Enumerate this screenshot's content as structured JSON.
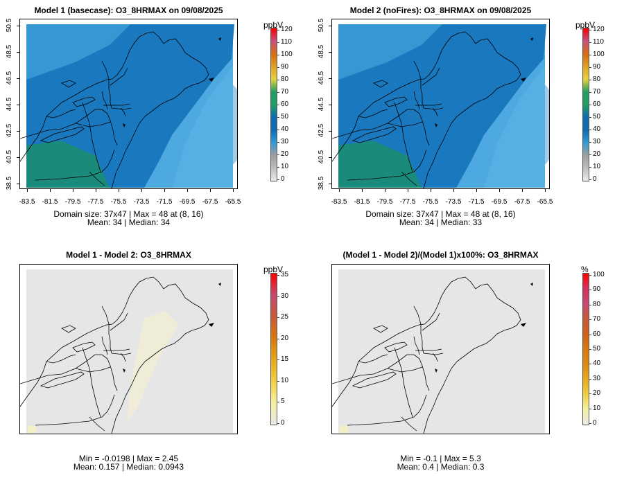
{
  "panels": [
    {
      "title": "Model 1 (basecase): O3_8HRMAX on 09/08/2025",
      "unit": "ppbV",
      "cbar_ticks": [
        "120",
        "110",
        "100",
        "90",
        "80",
        "70",
        "60",
        "50",
        "40",
        "30",
        "20",
        "10",
        "0"
      ],
      "cbar_colors": [
        "#e9e9e9",
        "#bdbdbd",
        "#9e9e9e",
        "#2f9bd6",
        "#0f6cb3",
        "#0f6cb3",
        "#1e9e60",
        "#1e9e60",
        "#e6d23a",
        "#e0a020",
        "#d86b10",
        "#c75080",
        "#ff0000"
      ],
      "stats_line1": "Domain size: 37x47 | Max = 48 at (8, 16)",
      "stats_line2": "Mean: 34 |  Median: 34",
      "y_ticks": [
        "50.5",
        "48.5",
        "46.5",
        "44.5",
        "42.5",
        "40.5",
        "38.5"
      ],
      "x_ticks": [
        "-83.5",
        "-81.5",
        "-79.5",
        "-77.5",
        "-75.5",
        "-73.5",
        "-71.5",
        "-69.5",
        "-67.5",
        "-65.5"
      ],
      "kind": "ozone"
    },
    {
      "title": "Model 2 (noFires): O3_8HRMAX on 09/08/2025",
      "unit": "ppbV",
      "cbar_ticks": [
        "120",
        "110",
        "100",
        "90",
        "80",
        "70",
        "60",
        "50",
        "40",
        "30",
        "20",
        "10",
        "0"
      ],
      "cbar_colors": [
        "#e9e9e9",
        "#bdbdbd",
        "#9e9e9e",
        "#2f9bd6",
        "#0f6cb3",
        "#0f6cb3",
        "#1e9e60",
        "#1e9e60",
        "#e6d23a",
        "#e0a020",
        "#d86b10",
        "#c75080",
        "#ff0000"
      ],
      "stats_line1": "Domain size: 37x47 | Max = 48 at (8, 16)",
      "stats_line2": "Mean: 34 |  Median: 33",
      "y_ticks": [
        "50.5",
        "48.5",
        "46.5",
        "44.5",
        "42.5",
        "40.5",
        "38.5"
      ],
      "x_ticks": [
        "-83.5",
        "-81.5",
        "-79.5",
        "-77.5",
        "-75.5",
        "-73.5",
        "-71.5",
        "-69.5",
        "-67.5",
        "-65.5"
      ],
      "kind": "ozone"
    },
    {
      "title": "Model 1 - Model 2: O3_8HRMAX",
      "unit": "ppbV",
      "cbar_ticks": [
        "35",
        "30",
        "25",
        "20",
        "15",
        "10",
        "5",
        "0"
      ],
      "cbar_colors": [
        "#e9e9e9",
        "#f5f0a0",
        "#f0d040",
        "#e8a818",
        "#d87808",
        "#c85838",
        "#c84870",
        "#ff0000"
      ],
      "stats_line1": "Min = -0.0198 | Max = 2.45",
      "stats_line2": "Mean: 0.157 |  Median: 0.0943",
      "y_ticks": [],
      "x_ticks": [],
      "kind": "diff"
    },
    {
      "title": "(Model 1 - Model 2)/(Model 1)x100%: O3_8HRMAX",
      "unit": "%",
      "cbar_ticks": [
        "100",
        "90",
        "80",
        "70",
        "60",
        "50",
        "40",
        "30",
        "20",
        "10",
        "0"
      ],
      "cbar_colors": [
        "#e9e9e9",
        "#f5f0a0",
        "#f0d040",
        "#e8a818",
        "#e08810",
        "#d87808",
        "#d06018",
        "#c85838",
        "#c84870",
        "#d83060",
        "#ff0000"
      ],
      "stats_line1": "Min = -0.1 | Max = 5.3",
      "stats_line2": "Mean: 0.4 |  Median: 0.3",
      "y_ticks": [],
      "x_ticks": [],
      "kind": "pct"
    }
  ],
  "chart_data": [
    {
      "type": "heatmap",
      "title": "Model 1 (basecase): O3_8HRMAX on 09/08/2025",
      "variable": "O3_8HRMAX",
      "unit": "ppbV",
      "grid": "37x47",
      "max": 48,
      "max_at": [
        8,
        16
      ],
      "mean": 34,
      "median": 34,
      "xlim": [
        -83.5,
        -65.5
      ],
      "ylim": [
        38.5,
        50.5
      ],
      "colorbar_range": [
        0,
        120
      ]
    },
    {
      "type": "heatmap",
      "title": "Model 2 (noFires): O3_8HRMAX on 09/08/2025",
      "variable": "O3_8HRMAX",
      "unit": "ppbV",
      "grid": "37x47",
      "max": 48,
      "max_at": [
        8,
        16
      ],
      "mean": 34,
      "median": 33,
      "xlim": [
        -83.5,
        -65.5
      ],
      "ylim": [
        38.5,
        50.5
      ],
      "colorbar_range": [
        0,
        120
      ]
    },
    {
      "type": "heatmap",
      "title": "Model 1 - Model 2: O3_8HRMAX",
      "unit": "ppbV",
      "min": -0.0198,
      "max": 2.45,
      "mean": 0.157,
      "median": 0.0943,
      "colorbar_range": [
        0,
        35
      ]
    },
    {
      "type": "heatmap",
      "title": "(Model 1 - Model 2)/(Model 1)x100%: O3_8HRMAX",
      "unit": "%",
      "min": -0.1,
      "max": 5.3,
      "mean": 0.4,
      "median": 0.3,
      "colorbar_range": [
        0,
        100
      ]
    }
  ]
}
